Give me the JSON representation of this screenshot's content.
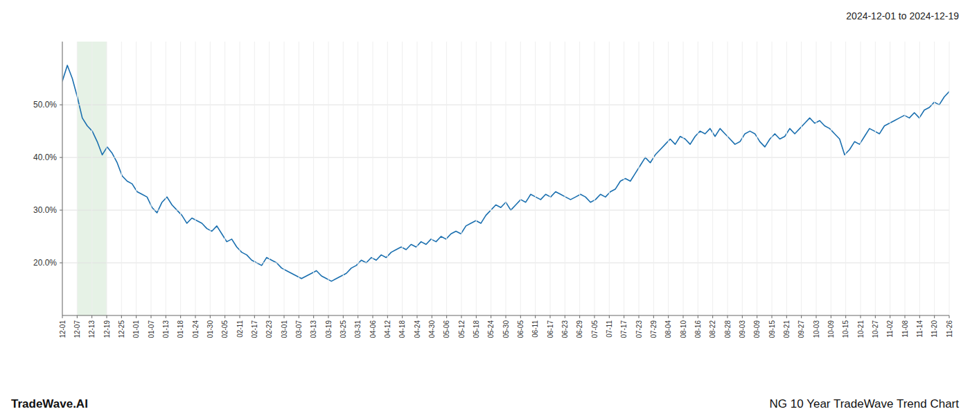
{
  "chart_data": {
    "type": "line",
    "title": "NG 10 Year TradeWave Trend Chart",
    "subtitle": "2024-12-01 to 2024-12-19",
    "annotations": [
      "TradeWave.AI"
    ],
    "color": "#1a6faf",
    "grid": true,
    "highlight": {
      "xlim": [
        1,
        3
      ],
      "color": "#d6ead6"
    },
    "xlim": [
      0,
      60
    ],
    "xticks": [
      {
        "value": 0,
        "label": "12-01"
      },
      {
        "value": 1,
        "label": "12-07"
      },
      {
        "value": 2,
        "label": "12-13"
      },
      {
        "value": 3,
        "label": "12-19"
      },
      {
        "value": 4,
        "label": "12-25"
      },
      {
        "value": 5,
        "label": "01-01"
      },
      {
        "value": 6,
        "label": "01-07"
      },
      {
        "value": 7,
        "label": "01-13"
      },
      {
        "value": 8,
        "label": "01-18"
      },
      {
        "value": 9,
        "label": "01-24"
      },
      {
        "value": 10,
        "label": "01-30"
      },
      {
        "value": 11,
        "label": "02-05"
      },
      {
        "value": 12,
        "label": "02-11"
      },
      {
        "value": 13,
        "label": "02-17"
      },
      {
        "value": 14,
        "label": "02-23"
      },
      {
        "value": 15,
        "label": "03-01"
      },
      {
        "value": 16,
        "label": "03-07"
      },
      {
        "value": 17,
        "label": "03-13"
      },
      {
        "value": 18,
        "label": "03-19"
      },
      {
        "value": 19,
        "label": "03-25"
      },
      {
        "value": 20,
        "label": "03-31"
      },
      {
        "value": 21,
        "label": "04-06"
      },
      {
        "value": 22,
        "label": "04-12"
      },
      {
        "value": 23,
        "label": "04-18"
      },
      {
        "value": 24,
        "label": "04-24"
      },
      {
        "value": 25,
        "label": "04-30"
      },
      {
        "value": 26,
        "label": "05-06"
      },
      {
        "value": 27,
        "label": "05-12"
      },
      {
        "value": 28,
        "label": "05-18"
      },
      {
        "value": 29,
        "label": "05-24"
      },
      {
        "value": 30,
        "label": "05-30"
      },
      {
        "value": 31,
        "label": "06-05"
      },
      {
        "value": 32,
        "label": "06-11"
      },
      {
        "value": 33,
        "label": "06-17"
      },
      {
        "value": 34,
        "label": "06-23"
      },
      {
        "value": 35,
        "label": "06-29"
      },
      {
        "value": 36,
        "label": "07-05"
      },
      {
        "value": 37,
        "label": "07-11"
      },
      {
        "value": 38,
        "label": "07-17"
      },
      {
        "value": 39,
        "label": "07-23"
      },
      {
        "value": 40,
        "label": "07-29"
      },
      {
        "value": 41,
        "label": "08-04"
      },
      {
        "value": 42,
        "label": "08-10"
      },
      {
        "value": 43,
        "label": "08-16"
      },
      {
        "value": 44,
        "label": "08-22"
      },
      {
        "value": 45,
        "label": "08-28"
      },
      {
        "value": 46,
        "label": "09-03"
      },
      {
        "value": 47,
        "label": "09-09"
      },
      {
        "value": 48,
        "label": "09-15"
      },
      {
        "value": 49,
        "label": "09-21"
      },
      {
        "value": 50,
        "label": "09-27"
      },
      {
        "value": 51,
        "label": "10-03"
      },
      {
        "value": 52,
        "label": "10-09"
      },
      {
        "value": 53,
        "label": "10-15"
      },
      {
        "value": 54,
        "label": "10-21"
      },
      {
        "value": 55,
        "label": "10-27"
      },
      {
        "value": 56,
        "label": "11-02"
      },
      {
        "value": 57,
        "label": "11-08"
      },
      {
        "value": 58,
        "label": "11-14"
      },
      {
        "value": 59,
        "label": "11-20"
      },
      {
        "value": 60,
        "label": "11-26"
      }
    ],
    "ylim": [
      10.0,
      62.0
    ],
    "yticks": [
      {
        "value": 20.0,
        "label": "20.0%"
      },
      {
        "value": 30.0,
        "label": "30.0%"
      },
      {
        "value": 40.0,
        "label": "40.0%"
      },
      {
        "value": 50.0,
        "label": "50.0%"
      }
    ],
    "values": [
      54.5,
      57.5,
      55.0,
      51.5,
      47.5,
      46.0,
      45.0,
      43.0,
      40.5,
      42.0,
      40.8,
      39.0,
      36.5,
      35.5,
      35.0,
      33.5,
      33.0,
      32.5,
      30.5,
      29.5,
      31.5,
      32.5,
      31.0,
      30.0,
      29.0,
      27.5,
      28.5,
      28.0,
      27.5,
      26.5,
      26.0,
      27.0,
      25.5,
      24.0,
      24.5,
      23.0,
      22.0,
      21.5,
      20.5,
      20.0,
      19.5,
      21.0,
      20.5,
      20.0,
      19.0,
      18.5,
      18.0,
      17.5,
      17.0,
      17.5,
      18.0,
      18.5,
      17.5,
      17.0,
      16.5,
      17.0,
      17.5,
      18.0,
      19.0,
      19.5,
      20.5,
      20.0,
      21.0,
      20.5,
      21.5,
      21.0,
      22.0,
      22.5,
      23.0,
      22.5,
      23.5,
      23.0,
      24.0,
      23.5,
      24.5,
      24.0,
      25.0,
      24.5,
      25.5,
      26.0,
      25.5,
      27.0,
      27.5,
      28.0,
      27.5,
      29.0,
      30.0,
      31.0,
      30.5,
      31.5,
      30.0,
      31.0,
      32.0,
      31.5,
      33.0,
      32.5,
      32.0,
      33.0,
      32.5,
      33.5,
      33.0,
      32.5,
      32.0,
      32.5,
      33.0,
      32.5,
      31.5,
      32.0,
      33.0,
      32.5,
      33.5,
      34.0,
      35.5,
      36.0,
      35.5,
      37.0,
      38.5,
      40.0,
      39.0,
      40.5,
      41.5,
      42.5,
      43.5,
      42.5,
      44.0,
      43.5,
      42.5,
      44.0,
      45.0,
      44.5,
      45.5,
      44.0,
      45.5,
      44.5,
      43.5,
      42.5,
      43.0,
      44.5,
      45.0,
      44.5,
      43.0,
      42.0,
      43.5,
      44.5,
      43.5,
      44.0,
      45.5,
      44.5,
      45.5,
      46.5,
      47.5,
      46.5,
      47.0,
      46.0,
      45.5,
      44.5,
      43.5,
      40.5,
      41.5,
      43.0,
      42.5,
      44.0,
      45.5,
      45.0,
      44.5,
      46.0,
      46.5,
      47.0,
      47.5,
      48.0,
      47.5,
      48.5,
      47.5,
      49.0,
      49.5,
      50.5,
      50.0,
      51.5,
      52.5
    ]
  }
}
